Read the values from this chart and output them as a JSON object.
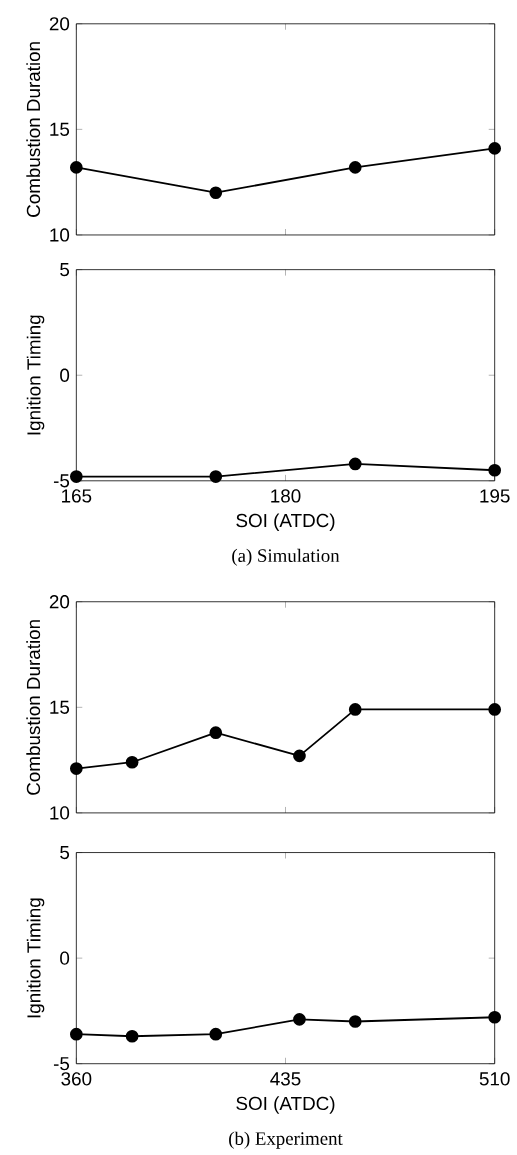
{
  "chart_data": [
    {
      "type": "line",
      "x": [
        165,
        175,
        185,
        195
      ],
      "values": [
        13.2,
        12.0,
        13.2,
        14.1
      ],
      "color": "#000000",
      "marker": "circle",
      "line_style": "solid",
      "xlim": [
        165,
        195
      ],
      "xticks": [
        165,
        180,
        195
      ],
      "ylim": [
        10,
        20
      ],
      "yticks": [
        10,
        15,
        20
      ],
      "ylabel": "Combustion Duration",
      "tick_labels": "y"
    },
    {
      "type": "line",
      "x": [
        165,
        175,
        185,
        195
      ],
      "values": [
        -4.8,
        -4.8,
        -4.2,
        -4.5
      ],
      "color": "#000000",
      "marker": "circle",
      "line_style": "solid",
      "xlim": [
        165,
        195
      ],
      "xticks": [
        165,
        180,
        195
      ],
      "ylim": [
        -5,
        5
      ],
      "yticks": [
        -5,
        0,
        5
      ],
      "ylabel": "Ignition Timing",
      "xlabel": "SOI (ATDC)",
      "annotations": [
        "(a) Simulation"
      ]
    },
    {
      "type": "line",
      "x": [
        360,
        380,
        410,
        440,
        460,
        510
      ],
      "values": [
        12.1,
        12.4,
        13.8,
        12.7,
        14.9,
        14.9
      ],
      "color": "#000000",
      "marker": "circle",
      "line_style": "solid",
      "xlim": [
        360,
        510
      ],
      "xticks": [
        360,
        435,
        510
      ],
      "ylim": [
        10,
        20
      ],
      "yticks": [
        10,
        15,
        20
      ],
      "ylabel": "Combustion Duration",
      "tick_labels": "y"
    },
    {
      "type": "line",
      "x": [
        360,
        380,
        410,
        440,
        460,
        510
      ],
      "values": [
        -3.6,
        -3.7,
        -3.6,
        -2.9,
        -3.0,
        -2.8
      ],
      "color": "#000000",
      "marker": "circle",
      "line_style": "solid",
      "xlim": [
        360,
        510
      ],
      "xticks": [
        360,
        435,
        510
      ],
      "ylim": [
        -5,
        5
      ],
      "yticks": [
        -5,
        0,
        5
      ],
      "ylabel": "Ignition Timing",
      "xlabel": "SOI (ATDC)",
      "annotations": [
        "(b) Experiment"
      ]
    }
  ]
}
